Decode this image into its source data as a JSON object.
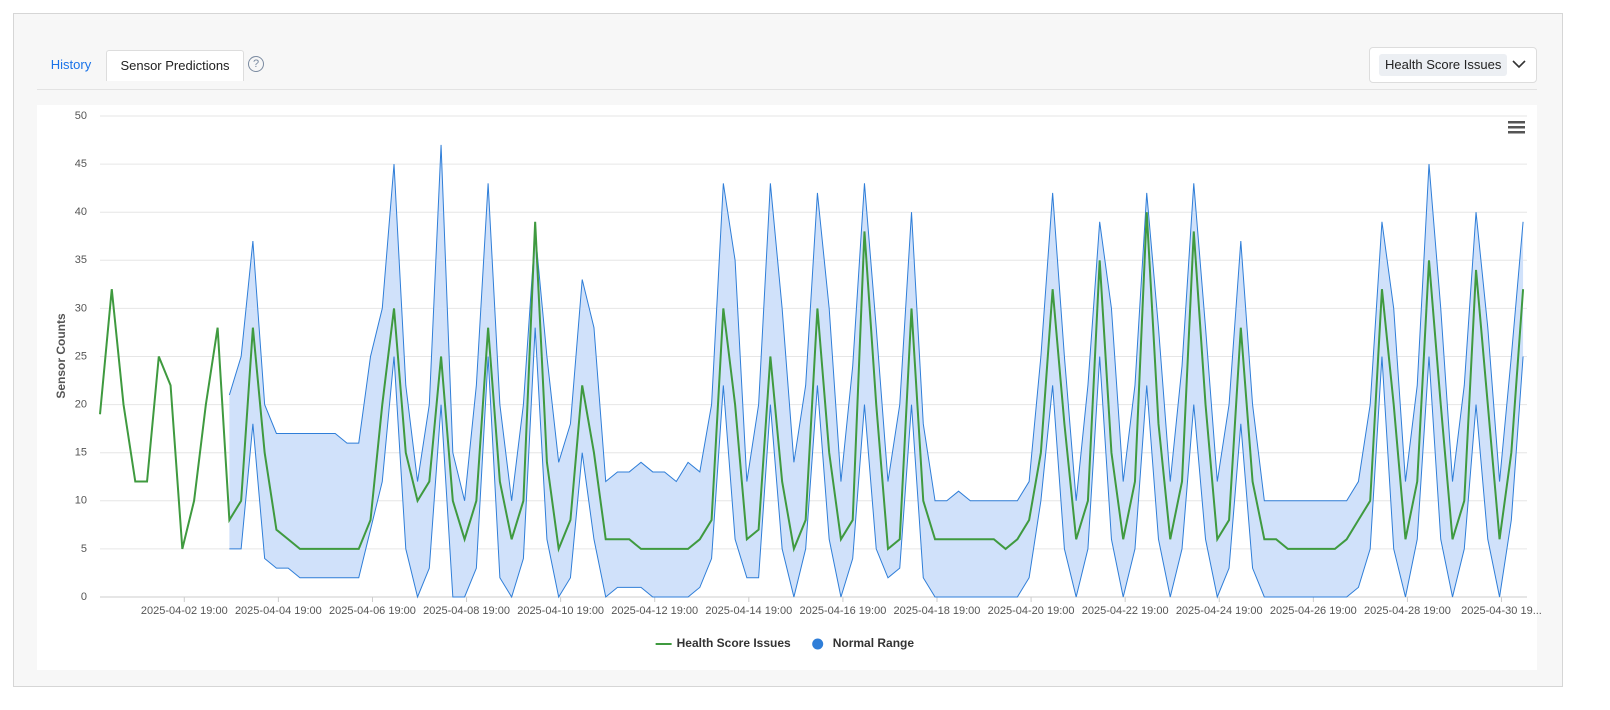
{
  "tabs": [
    "History",
    "Sensor Predictions"
  ],
  "selector": "Health Score Issues",
  "chart_data": {
    "type": "line",
    "ylabel": "Sensor Counts",
    "grid": true,
    "legend": "bottom",
    "x": [
      "2025-04-01 00:00",
      "2025-04-01 06:00",
      "2025-04-01 12:00",
      "2025-04-01 18:00",
      "2025-04-02 00:00",
      "2025-04-02 06:00",
      "2025-04-02 12:00",
      "2025-04-02 18:00",
      "2025-04-03 00:00",
      "2025-04-03 06:00",
      "2025-04-03 12:00",
      "2025-04-03 18:00",
      "2025-04-04 00:00",
      "2025-04-04 06:00",
      "2025-04-04 12:00",
      "2025-04-04 18:00",
      "2025-04-05 00:00",
      "2025-04-05 06:00",
      "2025-04-05 12:00",
      "2025-04-05 18:00",
      "2025-04-06 00:00",
      "2025-04-06 06:00",
      "2025-04-06 12:00",
      "2025-04-06 18:00",
      "2025-04-07 00:00",
      "2025-04-07 06:00",
      "2025-04-07 12:00",
      "2025-04-07 18:00",
      "2025-04-08 00:00",
      "2025-04-08 06:00",
      "2025-04-08 12:00",
      "2025-04-08 18:00",
      "2025-04-09 00:00",
      "2025-04-09 06:00",
      "2025-04-09 12:00",
      "2025-04-09 18:00",
      "2025-04-10 00:00",
      "2025-04-10 06:00",
      "2025-04-10 12:00",
      "2025-04-10 18:00",
      "2025-04-11 00:00",
      "2025-04-11 06:00",
      "2025-04-11 12:00",
      "2025-04-11 18:00",
      "2025-04-12 00:00",
      "2025-04-12 06:00",
      "2025-04-12 12:00",
      "2025-04-12 18:00",
      "2025-04-13 00:00",
      "2025-04-13 06:00",
      "2025-04-13 12:00",
      "2025-04-13 18:00",
      "2025-04-14 00:00",
      "2025-04-14 06:00",
      "2025-04-14 12:00",
      "2025-04-14 18:00",
      "2025-04-15 00:00",
      "2025-04-15 06:00",
      "2025-04-15 12:00",
      "2025-04-15 18:00",
      "2025-04-16 00:00",
      "2025-04-16 06:00",
      "2025-04-16 12:00",
      "2025-04-16 18:00",
      "2025-04-17 00:00",
      "2025-04-17 06:00",
      "2025-04-17 12:00",
      "2025-04-17 18:00",
      "2025-04-18 00:00",
      "2025-04-18 06:00",
      "2025-04-18 12:00",
      "2025-04-18 18:00",
      "2025-04-19 00:00",
      "2025-04-19 06:00",
      "2025-04-19 12:00",
      "2025-04-19 18:00",
      "2025-04-20 00:00",
      "2025-04-20 06:00",
      "2025-04-20 12:00",
      "2025-04-20 18:00",
      "2025-04-21 00:00",
      "2025-04-21 06:00",
      "2025-04-21 12:00",
      "2025-04-21 18:00",
      "2025-04-22 00:00",
      "2025-04-22 06:00",
      "2025-04-22 12:00",
      "2025-04-22 18:00",
      "2025-04-23 00:00",
      "2025-04-23 06:00",
      "2025-04-23 12:00",
      "2025-04-23 18:00",
      "2025-04-24 00:00",
      "2025-04-24 06:00",
      "2025-04-24 12:00",
      "2025-04-24 18:00",
      "2025-04-25 00:00",
      "2025-04-25 06:00",
      "2025-04-25 12:00",
      "2025-04-25 18:00",
      "2025-04-26 00:00",
      "2025-04-26 06:00",
      "2025-04-26 12:00",
      "2025-04-26 18:00",
      "2025-04-27 00:00",
      "2025-04-27 06:00",
      "2025-04-27 12:00",
      "2025-04-27 18:00",
      "2025-04-28 00:00",
      "2025-04-28 06:00",
      "2025-04-28 12:00",
      "2025-04-28 18:00",
      "2025-04-29 00:00",
      "2025-04-29 06:00",
      "2025-04-29 12:00",
      "2025-04-29 18:00",
      "2025-04-30 00:00",
      "2025-04-30 06:00",
      "2025-04-30 12:00",
      "2025-04-30 18:00",
      "2025-05-01 00:00",
      "2025-05-01 06:00"
    ],
    "xlim": [
      "2025-04-01 00:00",
      "2025-05-01 08:00"
    ],
    "xticks": [
      "2025-04-02 19:00",
      "2025-04-04 19:00",
      "2025-04-06 19:00",
      "2025-04-08 19:00",
      "2025-04-10 19:00",
      "2025-04-12 19:00",
      "2025-04-14 19:00",
      "2025-04-16 19:00",
      "2025-04-18 19:00",
      "2025-04-20 19:00",
      "2025-04-22 19:00",
      "2025-04-24 19:00",
      "2025-04-26 19:00",
      "2025-04-28 19:00",
      {
        "value": "2025-04-30 19:00",
        "label": "2025-04-30 19..."
      }
    ],
    "ylim": [
      0,
      50
    ],
    "yticks": [
      0,
      5,
      10,
      15,
      20,
      25,
      30,
      35,
      40,
      45,
      50
    ],
    "series": [
      {
        "name": "Health Score Issues",
        "color": "#3f9a3f",
        "values": [
          19,
          32,
          20,
          12,
          12,
          25,
          22,
          5,
          10,
          20,
          28,
          8,
          10,
          28,
          15,
          7,
          6,
          5,
          5,
          5,
          5,
          5,
          5,
          8,
          20,
          30,
          15,
          10,
          12,
          25,
          10,
          6,
          10,
          28,
          12,
          6,
          10,
          39,
          14,
          5,
          8,
          22,
          15,
          6,
          6,
          6,
          5,
          5,
          5,
          5,
          5,
          6,
          8,
          30,
          20,
          6,
          7,
          25,
          12,
          5,
          8,
          30,
          15,
          6,
          8,
          38,
          20,
          5,
          6,
          30,
          10,
          6,
          6,
          6,
          6,
          6,
          6,
          5,
          6,
          8,
          15,
          32,
          18,
          6,
          10,
          35,
          15,
          6,
          12,
          40,
          18,
          6,
          12,
          38,
          20,
          6,
          8,
          28,
          12,
          6,
          6,
          5,
          5,
          5,
          5,
          5,
          6,
          8,
          10,
          32,
          20,
          6,
          12,
          35,
          20,
          6,
          10,
          34,
          20,
          6,
          15,
          32
        ]
      },
      {
        "name": "Normal Range",
        "color": "#2f7ed8",
        "fill": "#d0e1fa",
        "low": [
          null,
          null,
          null,
          null,
          null,
          null,
          null,
          null,
          null,
          null,
          null,
          5,
          5,
          18,
          4,
          3,
          3,
          2,
          2,
          2,
          2,
          2,
          2,
          7,
          12,
          25,
          5,
          0,
          3,
          20,
          0,
          0,
          3,
          25,
          2,
          0,
          4,
          28,
          6,
          0,
          2,
          15,
          6,
          0,
          1,
          1,
          1,
          0,
          0,
          0,
          0,
          1,
          4,
          22,
          6,
          2,
          2,
          20,
          5,
          0,
          5,
          22,
          6,
          0,
          4,
          20,
          5,
          2,
          3,
          20,
          2,
          0,
          0,
          0,
          0,
          0,
          0,
          0,
          0,
          2,
          10,
          22,
          5,
          0,
          5,
          25,
          6,
          0,
          5,
          22,
          6,
          0,
          5,
          20,
          6,
          0,
          3,
          18,
          3,
          0,
          0,
          0,
          0,
          0,
          0,
          0,
          0,
          1,
          5,
          25,
          5,
          0,
          6,
          25,
          6,
          0,
          5,
          20,
          6,
          0,
          8,
          25
        ],
        "high": [
          null,
          null,
          null,
          null,
          null,
          null,
          null,
          null,
          null,
          null,
          null,
          21,
          25,
          37,
          20,
          17,
          17,
          17,
          17,
          17,
          17,
          16,
          16,
          25,
          30,
          45,
          22,
          12,
          20,
          47,
          15,
          10,
          22,
          43,
          20,
          10,
          20,
          38,
          25,
          14,
          18,
          33,
          28,
          12,
          13,
          13,
          14,
          13,
          13,
          12,
          14,
          13,
          20,
          43,
          35,
          12,
          20,
          43,
          30,
          14,
          22,
          42,
          30,
          12,
          24,
          43,
          28,
          12,
          20,
          40,
          18,
          10,
          10,
          11,
          10,
          10,
          10,
          10,
          10,
          12,
          25,
          42,
          25,
          10,
          22,
          39,
          30,
          12,
          22,
          42,
          28,
          12,
          24,
          43,
          28,
          12,
          20,
          37,
          20,
          10,
          10,
          10,
          10,
          10,
          10,
          10,
          10,
          12,
          20,
          39,
          30,
          12,
          22,
          45,
          30,
          12,
          22,
          40,
          28,
          12,
          25,
          39
        ]
      }
    ]
  }
}
